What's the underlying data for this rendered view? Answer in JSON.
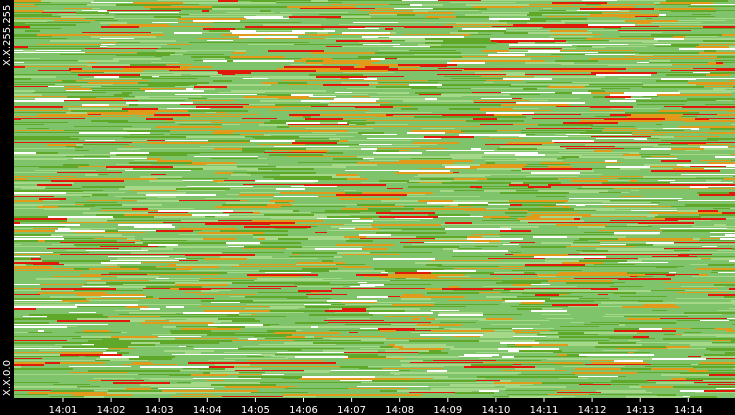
{
  "chart_data": {
    "type": "heatmap",
    "y_top_label": "X.X.255.255",
    "y_bottom_label": "X.X.0.0",
    "x_tick_labels": [
      "14:01",
      "14:02",
      "14:03",
      "14:04",
      "14:05",
      "14:06",
      "14:07",
      "14:08",
      "14:09",
      "14:10",
      "14:11",
      "14:12",
      "14:13",
      "14:14"
    ],
    "palette": {
      "base": "#7fc46a",
      "light": "#a6d88a",
      "mid": "#5fa82a",
      "orange": "#e29a1a",
      "red": "#e01a0a",
      "white": "#ffffff",
      "axis_bg": "#000000",
      "axis_text": "#ffffff"
    },
    "grid": false,
    "legend": "none"
  }
}
